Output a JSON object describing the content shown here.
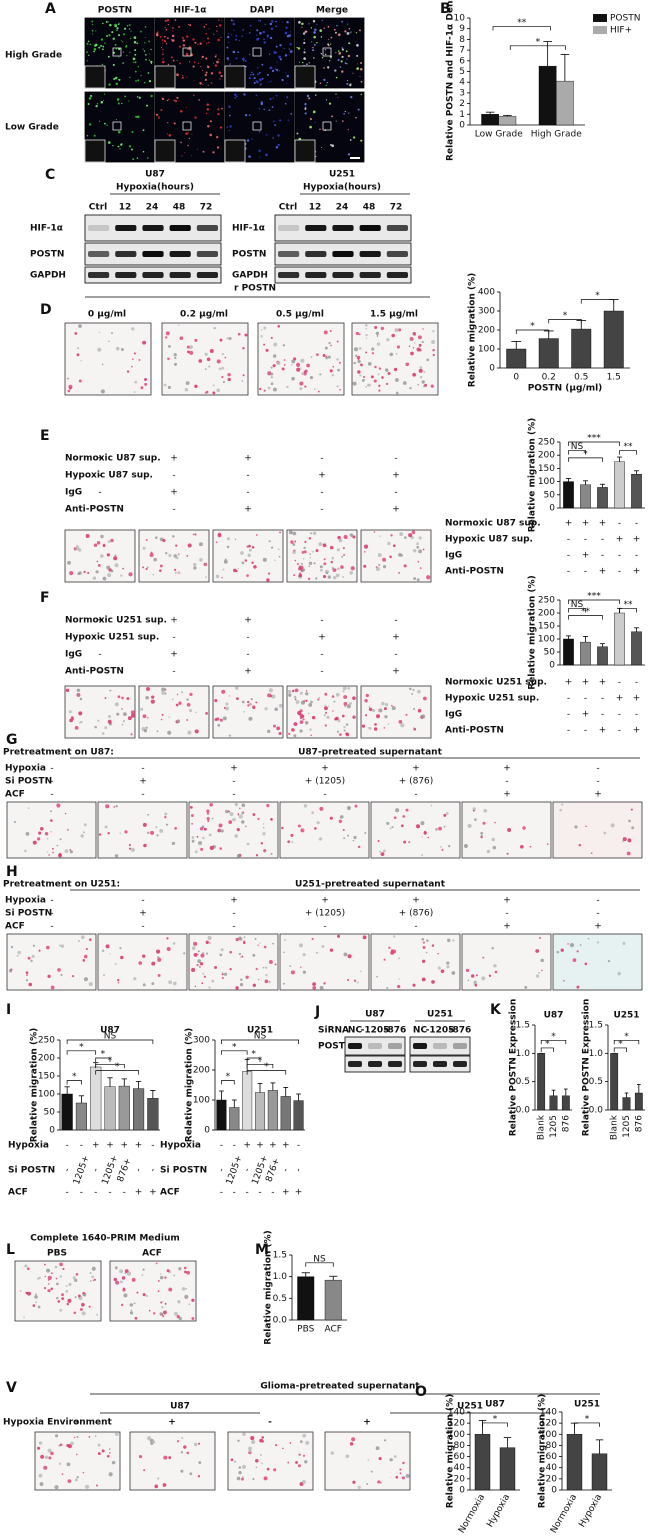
{
  "figure": {
    "A": {
      "label": "A",
      "columns": [
        "POSTN",
        "HIF-1α",
        "DAPI",
        "Merge"
      ],
      "rows": [
        "High Grade",
        "Low Grade"
      ]
    },
    "B": {
      "label": "B"
    },
    "C": {
      "label": "C",
      "blots": [
        {
          "cell": "U87",
          "title": "Hypoxia(hours)",
          "lanes": [
            "Ctrl",
            "12",
            "24",
            "48",
            "72"
          ],
          "proteins": [
            "HIF-1α",
            "POSTN",
            "GAPDH"
          ]
        },
        {
          "cell": "U251",
          "title": "Hypoxia(hours)",
          "lanes": [
            "Ctrl",
            "12",
            "24",
            "48",
            "72"
          ],
          "proteins": [
            "HIF-1α",
            "POSTN",
            "GAPDH"
          ]
        }
      ]
    },
    "D": {
      "label": "D",
      "title": "r POSTN",
      "doses": [
        "0 μg/ml",
        "0.2 μg/ml",
        "0.5 μg/ml",
        "1.5 μg/ml"
      ]
    },
    "E": {
      "label": "E",
      "conditions": [
        {
          "name": "Normoxic U87 sup.",
          "signs": [
            "+",
            "+",
            "+",
            "-",
            "-"
          ]
        },
        {
          "name": "Hypoxic U87 sup.",
          "signs": [
            "-",
            "-",
            "-",
            "+",
            "+"
          ]
        },
        {
          "name": "IgG",
          "signs": [
            "-",
            "+",
            "-",
            "-",
            "-"
          ]
        },
        {
          "name": "Anti-POSTN",
          "signs": [
            "-",
            "-",
            "+",
            "-",
            "+"
          ]
        }
      ]
    },
    "F": {
      "label": "F",
      "conditions": [
        {
          "name": "Normoxic U251 sup.",
          "signs": [
            "+",
            "+",
            "+",
            "-",
            "-"
          ]
        },
        {
          "name": "Hypoxic U251 sup.",
          "signs": [
            "-",
            "-",
            "-",
            "+",
            "+"
          ]
        },
        {
          "name": "IgG",
          "signs": [
            "-",
            "+",
            "-",
            "-",
            "-"
          ]
        },
        {
          "name": "Anti-POSTN",
          "signs": [
            "-",
            "-",
            "+",
            "-",
            "+"
          ]
        }
      ]
    },
    "G": {
      "label": "G",
      "pretreat": "Pretreatment on U87:",
      "title": "U87-pretreated supernatant",
      "conditions": [
        {
          "name": "Hypoxia",
          "signs": [
            "-",
            "-",
            "+",
            "+",
            "+",
            "+",
            "-"
          ]
        },
        {
          "name": "Si POSTN",
          "signs": [
            "-",
            "+",
            "-",
            "+ (1205)",
            "+ (876)",
            "-",
            "-"
          ]
        },
        {
          "name": "ACF",
          "signs": [
            "-",
            "-",
            "-",
            "-",
            "-",
            "+",
            "+"
          ]
        }
      ]
    },
    "H": {
      "label": "H",
      "pretreat": "Pretreatment on U251:",
      "title": "U251-pretreated supernatant",
      "conditions": [
        {
          "name": "Hypoxia",
          "signs": [
            "-",
            "-",
            "+",
            "+",
            "+",
            "+",
            "-"
          ]
        },
        {
          "name": "Si POSTN",
          "signs": [
            "-",
            "+",
            "-",
            "+ (1205)",
            "+ (876)",
            "-",
            "-"
          ]
        },
        {
          "name": "ACF",
          "signs": [
            "-",
            "-",
            "-",
            "-",
            "-",
            "+",
            "+"
          ]
        }
      ]
    },
    "I": {
      "label": "I",
      "conditions": [
        {
          "name": "Hypoxia",
          "signs": [
            "-",
            "-",
            "+",
            "+",
            "+",
            "+",
            "-"
          ]
        },
        {
          "name": "Si POSTN",
          "signs": [
            "-",
            "1205+",
            "-",
            "1205+",
            "876+",
            "-",
            "-"
          ]
        },
        {
          "name": "ACF",
          "signs": [
            "-",
            "-",
            "-",
            "-",
            "-",
            "+",
            "+"
          ]
        }
      ]
    },
    "J": {
      "label": "J",
      "cells": [
        "U87",
        "U251"
      ],
      "sirna": "SiRNA",
      "lanes": [
        "NC",
        "-1205",
        "-876"
      ],
      "protein": "POSTN"
    },
    "K": {
      "label": "K"
    },
    "L": {
      "label": "L",
      "title": "Complete 1640-PRIM Medium",
      "images": [
        "PBS",
        "ACF"
      ]
    },
    "M": {
      "label": "M"
    },
    "V": {
      "label": "V",
      "title": "Glioma-pretreated supernatant",
      "cells": [
        "U87",
        "U251"
      ],
      "condition": "Hypoxia Environment",
      "signs": [
        "-",
        "+",
        "-",
        "+"
      ]
    },
    "O": {
      "label": "O"
    }
  },
  "chart_data": [
    {
      "type": "bar",
      "ylabel": "Relative POSTN and HIF-1α Density",
      "categories": [
        "Low Grade",
        "High Grade"
      ],
      "series": [
        {
          "name": "POSTN",
          "color": "#111111",
          "values": [
            1.0,
            5.5
          ],
          "errors": [
            0.2,
            2.3
          ]
        },
        {
          "name": "HIF+",
          "color": "#aaaaaa",
          "values": [
            0.8,
            4.1
          ],
          "errors": [
            0.1,
            2.5
          ]
        }
      ],
      "ylim": [
        0,
        10
      ],
      "yticks": [
        0,
        1,
        2,
        3,
        4,
        5,
        6,
        7,
        8,
        9,
        10
      ],
      "annotations": [
        "**",
        "*"
      ]
    },
    {
      "type": "bar",
      "ylabel": "Relative migration (%)",
      "xlabel": "POSTN (μg/ml)",
      "categories": [
        "0",
        "0.2",
        "0.5",
        "1.5"
      ],
      "series": [
        {
          "color": "#444444",
          "values": [
            100,
            155,
            205,
            300
          ],
          "errors": [
            40,
            40,
            45,
            60
          ]
        }
      ],
      "ylim": [
        0,
        400
      ],
      "yticks": [
        0,
        100,
        200,
        300,
        400
      ],
      "annotations": [
        "*",
        "*",
        "*"
      ]
    },
    {
      "type": "bar",
      "ylabel": "Relative migration (%)",
      "categories": [
        null,
        null,
        null,
        null,
        null
      ],
      "series": [
        {
          "colors": [
            "#111111",
            "#888888",
            "#555555",
            "#cccccc",
            "#555555"
          ],
          "values": [
            100,
            88,
            78,
            175,
            128
          ],
          "errors": [
            12,
            15,
            12,
            18,
            13
          ]
        }
      ],
      "ylim": [
        0,
        250
      ],
      "yticks": [
        0,
        50,
        100,
        150,
        200,
        250
      ],
      "annotations": [
        "***",
        "NS",
        "*",
        "**"
      ]
    },
    {
      "type": "bar",
      "ylabel": "Relative migration (%)",
      "categories": [
        null,
        null,
        null,
        null,
        null
      ],
      "series": [
        {
          "colors": [
            "#111111",
            "#888888",
            "#555555",
            "#cccccc",
            "#555555"
          ],
          "values": [
            100,
            88,
            70,
            200,
            128
          ],
          "errors": [
            12,
            22,
            12,
            18,
            15
          ]
        }
      ],
      "ylim": [
        0,
        250
      ],
      "yticks": [
        0,
        50,
        100,
        150,
        200,
        250
      ],
      "annotations": [
        "***",
        "NS",
        "**",
        "**"
      ]
    },
    {
      "type": "bar",
      "title": "U87",
      "ylabel": "Relative migration (%)",
      "categories": [
        null,
        null,
        null,
        null,
        null,
        null,
        null
      ],
      "series": [
        {
          "colors": [
            "#111111",
            "#888888",
            "#dddddd",
            "#bbbbbb",
            "#999999",
            "#777777",
            "#555555"
          ],
          "values": [
            100,
            75,
            175,
            120,
            122,
            115,
            88
          ],
          "errors": [
            20,
            20,
            12,
            25,
            20,
            20,
            22
          ]
        }
      ],
      "ylim": [
        0,
        250
      ],
      "yticks": [
        0,
        50,
        100,
        150,
        200,
        250
      ],
      "annotations": [
        "NS",
        "*",
        "*",
        "*",
        "*",
        "*"
      ]
    },
    {
      "type": "bar",
      "title": "U251",
      "ylabel": "Relative migration (%)",
      "categories": [
        null,
        null,
        null,
        null,
        null,
        null,
        null
      ],
      "series": [
        {
          "colors": [
            "#111111",
            "#888888",
            "#dddddd",
            "#bbbbbb",
            "#999999",
            "#777777",
            "#555555"
          ],
          "values": [
            100,
            75,
            195,
            125,
            132,
            112,
            98
          ],
          "errors": [
            30,
            25,
            40,
            30,
            25,
            30,
            22
          ]
        }
      ],
      "ylim": [
        0,
        300
      ],
      "yticks": [
        0,
        100,
        200,
        300
      ],
      "annotations": [
        "NS",
        "*",
        "*",
        "*",
        "*",
        "*"
      ]
    },
    {
      "type": "bar",
      "title": "U87",
      "ylabel": "Relative POSTN Expression",
      "categories": [
        "Blank",
        "1205",
        "876"
      ],
      "series": [
        {
          "color": "#444444",
          "values": [
            1.0,
            0.25,
            0.25
          ],
          "errors": [
            0,
            0.1,
            0.12
          ]
        }
      ],
      "ylim": [
        0,
        1.5
      ],
      "yticks": [
        {
          "value": 0,
          "label": "0.0"
        },
        0.5,
        {
          "value": 1,
          "label": "1.0"
        },
        1.5
      ],
      "annotations": [
        "*",
        "*"
      ]
    },
    {
      "type": "bar",
      "title": "U251",
      "ylabel": "Relative POSTN Expression",
      "categories": [
        "Blank",
        "1205",
        "876"
      ],
      "series": [
        {
          "color": "#444444",
          "values": [
            1.0,
            0.22,
            0.3
          ],
          "errors": [
            0,
            0.08,
            0.15
          ]
        }
      ],
      "ylim": [
        0,
        1.5
      ],
      "yticks": [
        {
          "value": 0,
          "label": "0.0"
        },
        0.5,
        {
          "value": 1,
          "label": "1.0"
        },
        1.5
      ],
      "annotations": [
        "*",
        "*"
      ]
    },
    {
      "type": "bar",
      "ylabel": "Relative migration (%)",
      "categories": [
        "PBS",
        "ACF"
      ],
      "series": [
        {
          "colors": [
            "#111111",
            "#888888"
          ],
          "values": [
            1.0,
            0.92
          ],
          "errors": [
            0.09,
            0.09
          ]
        }
      ],
      "ylim": [
        0,
        1.5
      ],
      "yticks": [
        {
          "value": 0,
          "label": "0.0"
        },
        0.5,
        {
          "value": 1,
          "label": "1.0"
        },
        1.5
      ],
      "annotations": [
        "NS"
      ]
    },
    {
      "type": "bar",
      "title": "U87",
      "ylabel": "Relative migration (%)",
      "categories": [
        "Normoxia",
        "Hypoxia"
      ],
      "series": [
        {
          "color": "#444444",
          "values": [
            100,
            76
          ],
          "errors": [
            25,
            18
          ]
        }
      ],
      "ylim": [
        0,
        140
      ],
      "yticks": [
        0,
        20,
        40,
        60,
        80,
        100,
        120,
        140
      ],
      "annotations": [
        "*"
      ]
    },
    {
      "type": "bar",
      "title": "U251",
      "ylabel": "Relative migration (%)",
      "categories": [
        "Normoxia",
        "Hypoxia"
      ],
      "series": [
        {
          "color": "#444444",
          "values": [
            100,
            65
          ],
          "errors": [
            20,
            25
          ]
        }
      ],
      "ylim": [
        0,
        140
      ],
      "yticks": [
        0,
        20,
        40,
        60,
        80,
        100,
        120,
        140
      ],
      "annotations": [
        "*"
      ]
    }
  ]
}
